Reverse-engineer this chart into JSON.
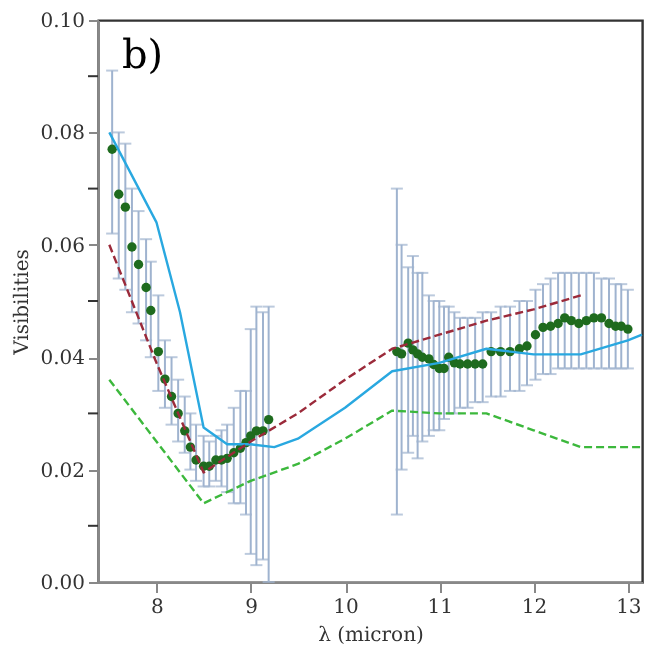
{
  "chart_data": {
    "type": "scatter",
    "xlabel": "λ (micron)",
    "ylabel": "Visibilities",
    "annotations": [
      "b)"
    ],
    "xlim": [
      7.38,
      13.15
    ],
    "ylim": [
      0,
      0.1
    ],
    "xticks": [
      8,
      9,
      10,
      11,
      12,
      13
    ],
    "yticks": [
      {
        "value": 0,
        "label": "0.00"
      },
      {
        "value": 0.01,
        "label": null
      },
      {
        "value": 0.02,
        "label": "0.02"
      },
      {
        "value": 0.03,
        "label": null
      },
      {
        "value": 0.04,
        "label": "0.04"
      },
      {
        "value": 0.05,
        "label": null
      },
      {
        "value": 0.06,
        "label": "0.06"
      },
      {
        "value": 0.07,
        "label": null
      },
      {
        "value": 0.08,
        "label": "0.08"
      },
      {
        "value": 0.09,
        "label": null
      },
      {
        "value": 0.1,
        "label": "0.10"
      }
    ],
    "grid": false,
    "series": [
      {
        "color": "#1e6b1e",
        "marker": "circle",
        "x": [
          7.53,
          7.6,
          7.67,
          7.74,
          7.81,
          7.89,
          7.94,
          8.02,
          8.09,
          8.16,
          8.23,
          8.3,
          8.36,
          8.42,
          8.5,
          8.56,
          8.63,
          8.69,
          8.75,
          8.82,
          8.89,
          8.95,
          9.0,
          9.06,
          9.13,
          9.19,
          10.55,
          10.6,
          10.67,
          10.72,
          10.77,
          10.82,
          10.89,
          10.94,
          11.0,
          11.05,
          11.1,
          11.16,
          11.22,
          11.3,
          11.38,
          11.46,
          11.55,
          11.65,
          11.75,
          11.85,
          11.93,
          12.02,
          12.1,
          12.18,
          12.26,
          12.33,
          12.4,
          12.48,
          12.56,
          12.64,
          12.72,
          12.8,
          12.87,
          12.93,
          13.0
        ],
        "values": [
          0.077,
          0.069,
          0.0667,
          0.0596,
          0.0565,
          0.0524,
          0.0483,
          0.041,
          0.0361,
          0.033,
          0.03,
          0.0269,
          0.024,
          0.0217,
          0.0206,
          0.0206,
          0.0217,
          0.0217,
          0.022,
          0.023,
          0.0238,
          0.0248,
          0.026,
          0.0269,
          0.0269,
          0.0289,
          0.041,
          0.0406,
          0.0425,
          0.0413,
          0.0406,
          0.04,
          0.0397,
          0.0387,
          0.038,
          0.038,
          0.04,
          0.039,
          0.0388,
          0.0388,
          0.0388,
          0.0388,
          0.041,
          0.041,
          0.041,
          0.0415,
          0.042,
          0.044,
          0.0453,
          0.0455,
          0.046,
          0.047,
          0.0465,
          0.046,
          0.0465,
          0.047,
          0.047,
          0.046,
          0.0455,
          0.0455,
          0.045
        ],
        "errors": [
          [
            0.062,
            0.091
          ],
          [
            0.054,
            0.08
          ],
          [
            0.052,
            0.078
          ],
          [
            0.048,
            0.07
          ],
          [
            0.046,
            0.066
          ],
          [
            0.043,
            0.061
          ],
          [
            0.04,
            0.057
          ],
          [
            0.034,
            0.051
          ],
          [
            0.031,
            0.043
          ],
          [
            0.028,
            0.04
          ],
          [
            0.025,
            0.036
          ],
          [
            0.023,
            0.033
          ],
          [
            0.02,
            0.03
          ],
          [
            0.018,
            0.028
          ],
          [
            0.017,
            0.026
          ],
          [
            0.017,
            0.025
          ],
          [
            0.018,
            0.026
          ],
          [
            0.017,
            0.027
          ],
          [
            0.016,
            0.028
          ],
          [
            0.014,
            0.031
          ],
          [
            0.014,
            0.034
          ],
          [
            0.012,
            0.034
          ],
          [
            0.005,
            0.045
          ],
          [
            0.003,
            0.049
          ],
          [
            0.004,
            0.048
          ],
          [
            0.0,
            0.049
          ],
          [
            0.012,
            0.07
          ],
          [
            0.02,
            0.06
          ],
          [
            0.023,
            0.056
          ],
          [
            0.026,
            0.058
          ],
          [
            0.022,
            0.055
          ],
          [
            0.025,
            0.055
          ],
          [
            0.026,
            0.051
          ],
          [
            0.027,
            0.05
          ],
          [
            0.027,
            0.05
          ],
          [
            0.029,
            0.049
          ],
          [
            0.03,
            0.049
          ],
          [
            0.03,
            0.048
          ],
          [
            0.031,
            0.047
          ],
          [
            0.031,
            0.047
          ],
          [
            0.032,
            0.047
          ],
          [
            0.032,
            0.048
          ],
          [
            0.033,
            0.048
          ],
          [
            0.033,
            0.049
          ],
          [
            0.034,
            0.049
          ],
          [
            0.034,
            0.05
          ],
          [
            0.035,
            0.05
          ],
          [
            0.036,
            0.052
          ],
          [
            0.037,
            0.053
          ],
          [
            0.037,
            0.054
          ],
          [
            0.038,
            0.055
          ],
          [
            0.038,
            0.055
          ],
          [
            0.038,
            0.055
          ],
          [
            0.038,
            0.055
          ],
          [
            0.038,
            0.055
          ],
          [
            0.038,
            0.055
          ],
          [
            0.038,
            0.054
          ],
          [
            0.038,
            0.054
          ],
          [
            0.038,
            0.053
          ],
          [
            0.038,
            0.053
          ],
          [
            0.038,
            0.052
          ]
        ]
      },
      {
        "type": "line",
        "color": "#29a8e0",
        "line_style": "solid",
        "x": [
          7.5,
          8.0,
          8.25,
          8.5,
          8.75,
          9.0,
          9.25,
          9.5,
          10.0,
          10.5,
          11.0,
          11.5,
          12.0,
          12.5,
          13.0,
          13.15
        ],
        "values": [
          0.08,
          0.064,
          0.048,
          0.0275,
          0.0245,
          0.0245,
          0.024,
          0.0255,
          0.031,
          0.0375,
          0.039,
          0.0415,
          0.0405,
          0.0405,
          0.043,
          0.044
        ]
      },
      {
        "type": "line",
        "color": "#9b2a3a",
        "line_style": "dashed",
        "x": [
          7.5,
          8.0,
          8.5,
          9.0,
          9.5,
          10.0,
          10.5,
          11.0,
          11.5,
          12.0,
          12.5
        ],
        "values": [
          0.06,
          0.039,
          0.0195,
          0.025,
          0.03,
          0.036,
          0.0415,
          0.044,
          0.0465,
          0.0485,
          0.051
        ]
      },
      {
        "type": "line",
        "color": "#3cb83c",
        "line_style": "dashed",
        "x": [
          7.5,
          8.5,
          9.0,
          9.5,
          10.0,
          10.5,
          11.0,
          11.5,
          12.0,
          12.5,
          13.15
        ],
        "values": [
          0.036,
          0.014,
          0.018,
          0.021,
          0.0255,
          0.0305,
          0.03,
          0.03,
          0.027,
          0.024,
          0.024
        ]
      }
    ]
  }
}
